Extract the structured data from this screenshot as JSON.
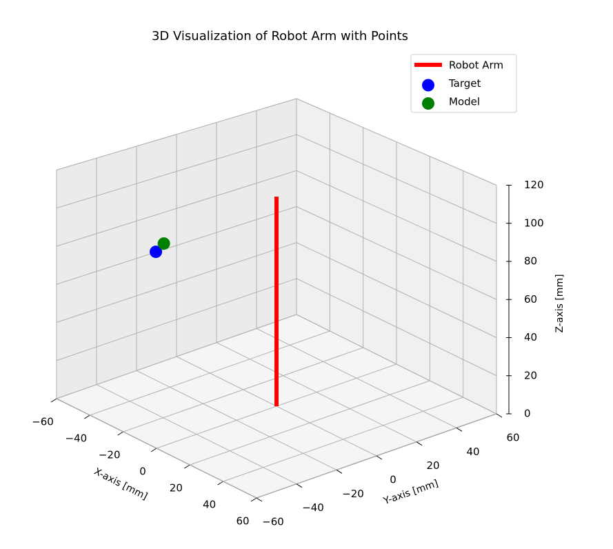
{
  "chart_data": {
    "type": "scatter3d",
    "title": "3D Visualization of Robot Arm with Points",
    "xlabel": "X-axis [mm]",
    "ylabel": "Y-axis [mm]",
    "zlabel": "Z-axis [mm]",
    "xlim": [
      -60,
      60
    ],
    "ylim": [
      -60,
      60
    ],
    "zlim": [
      0,
      120
    ],
    "xticks": [
      {
        "value": -60,
        "label": "−60"
      },
      {
        "value": -40,
        "label": "−40"
      },
      {
        "value": -20,
        "label": "−20"
      },
      0,
      20,
      40,
      60
    ],
    "yticks": [
      {
        "value": -60,
        "label": "−60"
      },
      {
        "value": -40,
        "label": "−40"
      },
      {
        "value": -20,
        "label": "−20"
      },
      0,
      20,
      40,
      60
    ],
    "zticks": [
      0,
      20,
      40,
      60,
      80,
      100,
      120
    ],
    "grid": true,
    "legend": "upper right",
    "series": [
      {
        "name": "Robot Arm",
        "type": "line",
        "color": "#ff0000",
        "x": [
          0,
          0
        ],
        "y": [
          0,
          0
        ],
        "z": [
          0,
          110
        ]
      },
      {
        "name": "Target",
        "type": "scatter",
        "color": "#0000ff",
        "x": [
          -10
        ],
        "y": [
          -52
        ],
        "z": [
          94
        ]
      },
      {
        "name": "Model",
        "type": "scatter",
        "color": "#008000",
        "x": [
          -10
        ],
        "y": [
          -48
        ],
        "z": [
          97
        ]
      }
    ]
  }
}
